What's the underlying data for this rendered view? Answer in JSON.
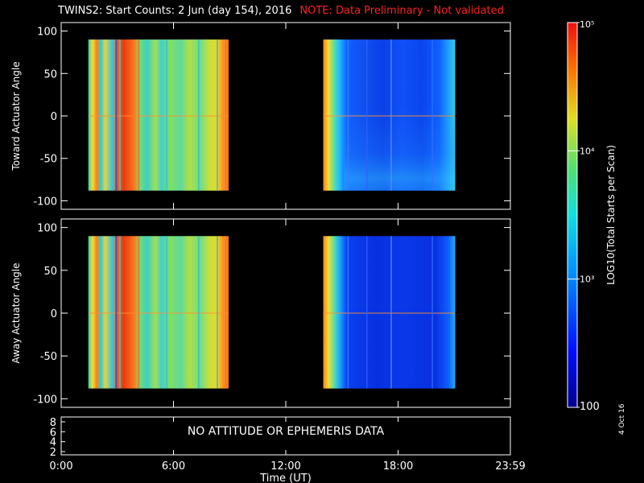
{
  "title": "TWINS2: Start Counts:  2 Jun (day 154), 2016",
  "note": "NOTE: Data Preliminary - Not validated",
  "datestamp": "4 Oct 16",
  "colors": {
    "background": "#000000",
    "axes": "#ffffff",
    "note": "#ff2020"
  },
  "chart_data": [
    {
      "type": "heatmap",
      "ylabel": "Toward Actuator Angle",
      "ylim": [
        -110,
        110
      ],
      "yticks": [
        100,
        50,
        0,
        -50,
        -100
      ],
      "xlim_hours": [
        0,
        24
      ],
      "data_intervals_hours": [
        [
          1.45,
          8.95
        ],
        [
          14.0,
          21.05
        ]
      ],
      "actuator_angle_range": [
        -88,
        90
      ]
    },
    {
      "type": "heatmap",
      "ylabel": "Away Actuator Angle",
      "ylim": [
        -110,
        110
      ],
      "yticks": [
        100,
        50,
        0,
        -50,
        -100
      ],
      "xlim_hours": [
        0,
        24
      ],
      "data_intervals_hours": [
        [
          1.45,
          8.95
        ],
        [
          14.0,
          21.05
        ]
      ],
      "actuator_angle_range": [
        -88,
        90
      ]
    },
    {
      "type": "table",
      "yticks": [
        "8",
        "6",
        "4",
        "2"
      ],
      "message": "NO ATTITUDE OR EPHEMERIS DATA"
    }
  ],
  "xaxis": {
    "label": "Time (UT)",
    "ticks": [
      {
        "label": "0:00",
        "hour": 0
      },
      {
        "label": "6:00",
        "hour": 6
      },
      {
        "label": "12:00",
        "hour": 12
      },
      {
        "label": "18:00",
        "hour": 18
      },
      {
        "label": "23:59",
        "hour": 24
      }
    ]
  },
  "colorbar": {
    "label": "LOG10(Total Starts per Scan)",
    "scale": "log",
    "range": [
      100,
      100000
    ],
    "ticks": [
      {
        "label": "100",
        "value": 100
      },
      {
        "label": "10³",
        "value": 1000
      },
      {
        "label": "10⁴",
        "value": 10000
      },
      {
        "label": "10⁵",
        "value": 100000
      }
    ]
  }
}
